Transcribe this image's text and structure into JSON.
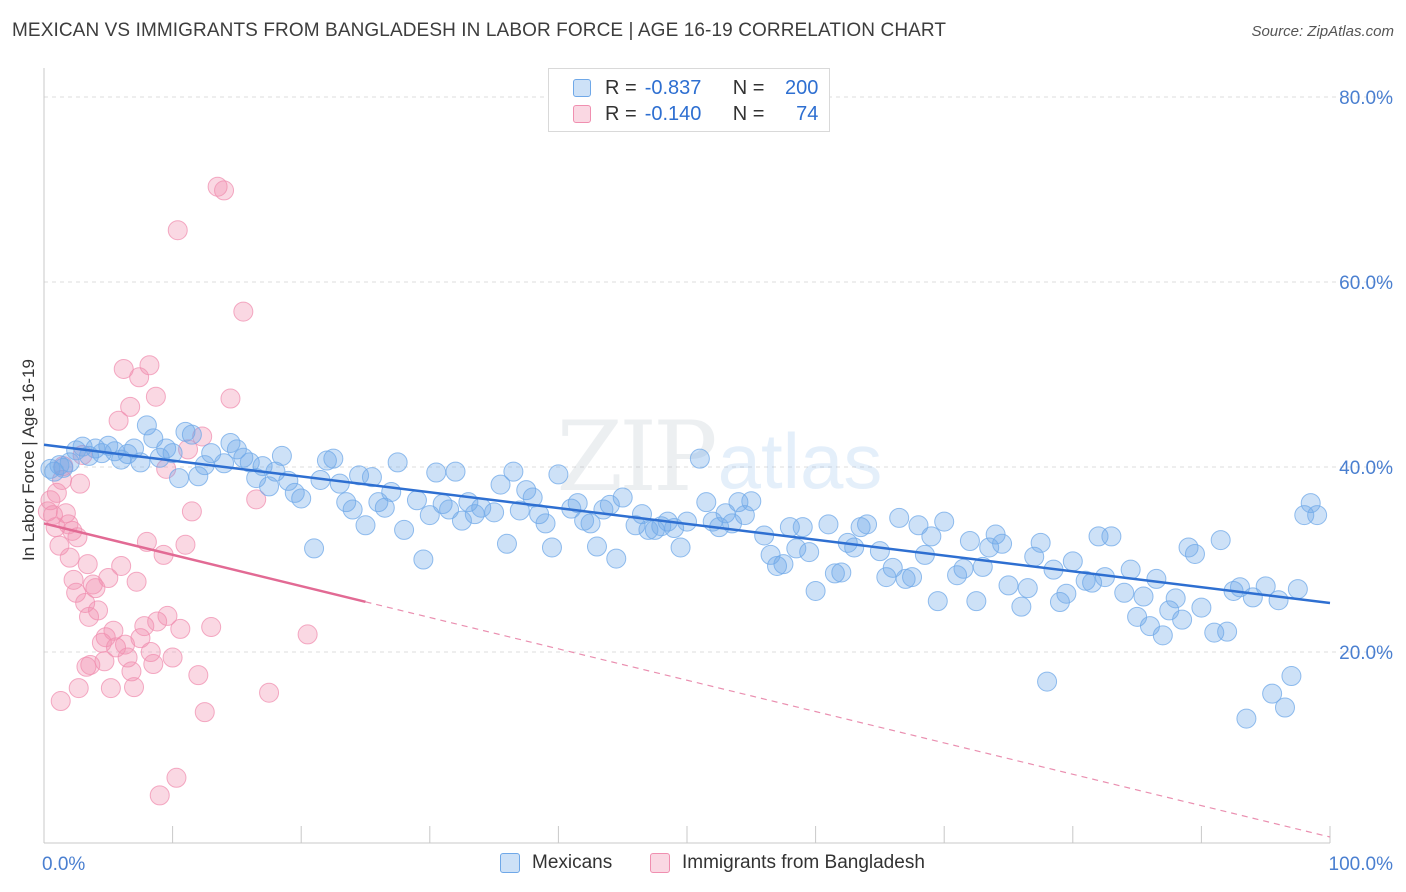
{
  "header": {
    "title": "MEXICAN VS IMMIGRANTS FROM BANGLADESH IN LABOR FORCE | AGE 16-19 CORRELATION CHART",
    "source": "Source: ZipAtlas.com"
  },
  "watermark": {
    "zip": "ZIP",
    "atlas": "atlas"
  },
  "legend": {
    "r_label": "R =",
    "n_label": "N =",
    "rows": [
      {
        "r": "-0.837",
        "n": "200",
        "color": "#6fa8e8"
      },
      {
        "r": "-0.140",
        "n": "74",
        "color": "#f08fb0"
      }
    ]
  },
  "bottom_legend": [
    {
      "label": "Mexicans",
      "color": "#6fa8e8"
    },
    {
      "label": "Immigrants from Bangladesh",
      "color": "#f08fb0"
    }
  ],
  "chart_data": {
    "type": "scatter",
    "title": "MEXICAN VS IMMIGRANTS FROM BANGLADESH IN LABOR FORCE | AGE 16-19 CORRELATION CHART",
    "xlabel": "",
    "ylabel": "In Labor Force | Age 16-19",
    "xlim": [
      0,
      100
    ],
    "ylim": [
      0,
      85
    ],
    "x_tick_labels": [
      "0.0%",
      "100.0%"
    ],
    "y_ticks": [
      20,
      40,
      60,
      80
    ],
    "y_tick_labels": [
      "20.0%",
      "40.0%",
      "60.0%",
      "80.0%"
    ],
    "grid": true,
    "legend_position": "top-center",
    "series": [
      {
        "name": "Mexicans",
        "color": "#6fa8e8",
        "trend": {
          "x": [
            0,
            100
          ],
          "y": [
            42.4,
            25.3
          ],
          "dashed_after": null
        },
        "points": [
          [
            0.5,
            39.8
          ],
          [
            0.8,
            39.5
          ],
          [
            1.2,
            40.2
          ],
          [
            1.5,
            39.9
          ],
          [
            2.0,
            40.5
          ],
          [
            2.5,
            41.8
          ],
          [
            3.0,
            42.2
          ],
          [
            3.5,
            41.2
          ],
          [
            4.0,
            42.0
          ],
          [
            4.5,
            41.5
          ],
          [
            5.0,
            42.3
          ],
          [
            5.5,
            41.7
          ],
          [
            6.0,
            40.8
          ],
          [
            6.5,
            41.4
          ],
          [
            7.0,
            42.0
          ],
          [
            7.5,
            40.5
          ],
          [
            8.0,
            44.5
          ],
          [
            8.5,
            43.1
          ],
          [
            9.0,
            41.0
          ],
          [
            9.5,
            42.0
          ],
          [
            10.0,
            41.5
          ],
          [
            10.5,
            38.8
          ],
          [
            11.0,
            43.8
          ],
          [
            11.5,
            43.5
          ],
          [
            12.0,
            39.0
          ],
          [
            12.5,
            40.2
          ],
          [
            13.0,
            41.5
          ],
          [
            14.0,
            40.4
          ],
          [
            14.5,
            42.6
          ],
          [
            15.0,
            41.9
          ],
          [
            15.5,
            41.0
          ],
          [
            16.0,
            40.5
          ],
          [
            16.5,
            38.8
          ],
          [
            17.0,
            40.1
          ],
          [
            17.5,
            37.9
          ],
          [
            18.0,
            39.5
          ],
          [
            18.5,
            41.2
          ],
          [
            19.0,
            38.5
          ],
          [
            19.5,
            37.2
          ],
          [
            20.0,
            36.6
          ],
          [
            21.0,
            31.2
          ],
          [
            21.5,
            38.6
          ],
          [
            22.0,
            40.7
          ],
          [
            22.5,
            40.9
          ],
          [
            23.0,
            38.2
          ],
          [
            23.5,
            36.2
          ],
          [
            24.0,
            35.4
          ],
          [
            24.5,
            39.1
          ],
          [
            25.0,
            33.7
          ],
          [
            25.5,
            38.9
          ],
          [
            26.0,
            36.2
          ],
          [
            26.5,
            35.6
          ],
          [
            27.0,
            37.3
          ],
          [
            27.5,
            40.5
          ],
          [
            28.0,
            33.2
          ],
          [
            29.0,
            36.4
          ],
          [
            29.5,
            30.0
          ],
          [
            30.0,
            34.8
          ],
          [
            30.5,
            39.4
          ],
          [
            31.0,
            36.0
          ],
          [
            31.5,
            35.4
          ],
          [
            32.0,
            39.5
          ],
          [
            32.5,
            34.2
          ],
          [
            33.0,
            36.2
          ],
          [
            33.5,
            34.9
          ],
          [
            34.0,
            35.6
          ],
          [
            35.0,
            35.1
          ],
          [
            35.5,
            38.1
          ],
          [
            36.0,
            31.7
          ],
          [
            36.5,
            39.5
          ],
          [
            37.0,
            35.3
          ],
          [
            37.5,
            37.5
          ],
          [
            38.0,
            36.7
          ],
          [
            38.5,
            34.9
          ],
          [
            39.0,
            33.9
          ],
          [
            39.5,
            31.3
          ],
          [
            40.0,
            39.2
          ],
          [
            41.0,
            35.5
          ],
          [
            41.5,
            36.1
          ],
          [
            42.0,
            34.2
          ],
          [
            42.5,
            33.9
          ],
          [
            43.0,
            31.4
          ],
          [
            43.5,
            35.4
          ],
          [
            44.0,
            35.9
          ],
          [
            44.5,
            30.1
          ],
          [
            45.0,
            36.7
          ],
          [
            46.0,
            33.7
          ],
          [
            46.5,
            34.9
          ],
          [
            47.0,
            33.2
          ],
          [
            47.5,
            33.2
          ],
          [
            48.0,
            33.6
          ],
          [
            48.5,
            34.1
          ],
          [
            49.0,
            33.4
          ],
          [
            49.5,
            31.3
          ],
          [
            50.0,
            34.1
          ],
          [
            51.0,
            40.9
          ],
          [
            51.5,
            36.2
          ],
          [
            52.0,
            34.1
          ],
          [
            52.5,
            33.5
          ],
          [
            53.0,
            35.0
          ],
          [
            53.5,
            33.9
          ],
          [
            54.0,
            36.2
          ],
          [
            54.5,
            34.8
          ],
          [
            55.0,
            36.3
          ],
          [
            56.0,
            32.6
          ],
          [
            56.5,
            30.5
          ],
          [
            57.0,
            29.3
          ],
          [
            57.5,
            29.5
          ],
          [
            58.0,
            33.5
          ],
          [
            58.5,
            31.2
          ],
          [
            59.0,
            33.5
          ],
          [
            59.5,
            30.8
          ],
          [
            60.0,
            26.6
          ],
          [
            61.0,
            33.8
          ],
          [
            61.5,
            28.5
          ],
          [
            62.0,
            28.6
          ],
          [
            62.5,
            31.8
          ],
          [
            63.0,
            31.3
          ],
          [
            63.5,
            33.5
          ],
          [
            64.0,
            33.8
          ],
          [
            65.0,
            30.9
          ],
          [
            65.5,
            28.1
          ],
          [
            66.0,
            29.1
          ],
          [
            66.5,
            34.5
          ],
          [
            67.0,
            27.9
          ],
          [
            67.5,
            28.1
          ],
          [
            68.0,
            33.7
          ],
          [
            68.5,
            30.5
          ],
          [
            69.0,
            32.5
          ],
          [
            69.5,
            25.5
          ],
          [
            70.0,
            34.1
          ],
          [
            71.0,
            28.3
          ],
          [
            71.5,
            29.0
          ],
          [
            72.0,
            32.0
          ],
          [
            72.5,
            25.5
          ],
          [
            73.0,
            29.2
          ],
          [
            73.5,
            31.3
          ],
          [
            74.0,
            32.7
          ],
          [
            74.5,
            31.7
          ],
          [
            75.0,
            27.2
          ],
          [
            76.0,
            24.9
          ],
          [
            76.5,
            26.9
          ],
          [
            77.0,
            30.3
          ],
          [
            77.5,
            31.8
          ],
          [
            78.0,
            16.8
          ],
          [
            78.5,
            28.9
          ],
          [
            79.0,
            25.4
          ],
          [
            79.5,
            26.3
          ],
          [
            80.0,
            29.8
          ],
          [
            81.0,
            27.7
          ],
          [
            81.5,
            27.5
          ],
          [
            82.0,
            32.5
          ],
          [
            82.5,
            28.1
          ],
          [
            83.0,
            32.5
          ],
          [
            84.0,
            26.4
          ],
          [
            84.5,
            28.9
          ],
          [
            85.0,
            23.8
          ],
          [
            85.5,
            26.0
          ],
          [
            86.0,
            22.8
          ],
          [
            86.5,
            27.9
          ],
          [
            87.0,
            21.8
          ],
          [
            87.5,
            24.5
          ],
          [
            88.0,
            25.8
          ],
          [
            88.5,
            23.5
          ],
          [
            89.0,
            31.3
          ],
          [
            89.5,
            30.6
          ],
          [
            90.0,
            24.8
          ],
          [
            91.0,
            22.1
          ],
          [
            91.5,
            32.1
          ],
          [
            92.0,
            22.2
          ],
          [
            92.5,
            26.6
          ],
          [
            93.0,
            27.0
          ],
          [
            93.5,
            12.8
          ],
          [
            94.0,
            25.9
          ],
          [
            95.0,
            27.1
          ],
          [
            95.5,
            15.5
          ],
          [
            96.0,
            25.6
          ],
          [
            96.5,
            14.0
          ],
          [
            97.0,
            17.4
          ],
          [
            97.5,
            26.8
          ],
          [
            98.0,
            34.8
          ],
          [
            98.5,
            36.1
          ],
          [
            99.0,
            34.8
          ]
        ]
      },
      {
        "name": "Immigrants from Bangladesh",
        "color": "#f08fb0",
        "trend": {
          "x": [
            0,
            100
          ],
          "y": [
            33.9,
            0
          ],
          "solid_until_x": 25
        },
        "points": [
          [
            0.3,
            35.2
          ],
          [
            0.5,
            36.4
          ],
          [
            0.7,
            34.8
          ],
          [
            0.9,
            33.5
          ],
          [
            1.0,
            37.2
          ],
          [
            1.2,
            31.5
          ],
          [
            1.4,
            38.6
          ],
          [
            1.5,
            40.1
          ],
          [
            1.7,
            35.0
          ],
          [
            1.9,
            33.8
          ],
          [
            2.0,
            30.2
          ],
          [
            2.2,
            33.1
          ],
          [
            2.3,
            27.8
          ],
          [
            2.5,
            26.4
          ],
          [
            2.6,
            32.4
          ],
          [
            2.8,
            38.2
          ],
          [
            3.0,
            41.3
          ],
          [
            3.2,
            25.3
          ],
          [
            3.4,
            29.5
          ],
          [
            3.5,
            23.8
          ],
          [
            3.6,
            18.6
          ],
          [
            3.8,
            27.3
          ],
          [
            4.0,
            26.9
          ],
          [
            4.2,
            24.5
          ],
          [
            4.5,
            21.0
          ],
          [
            4.7,
            19.0
          ],
          [
            5.0,
            28.0
          ],
          [
            5.2,
            16.1
          ],
          [
            5.4,
            22.3
          ],
          [
            5.6,
            20.5
          ],
          [
            5.8,
            45.0
          ],
          [
            6.0,
            29.3
          ],
          [
            6.3,
            20.8
          ],
          [
            6.5,
            19.4
          ],
          [
            6.8,
            17.9
          ],
          [
            7.0,
            16.2
          ],
          [
            7.2,
            27.6
          ],
          [
            7.5,
            21.5
          ],
          [
            7.8,
            22.8
          ],
          [
            8.0,
            31.9
          ],
          [
            8.3,
            20.0
          ],
          [
            8.5,
            18.7
          ],
          [
            8.8,
            23.3
          ],
          [
            9.0,
            4.5
          ],
          [
            9.3,
            30.5
          ],
          [
            9.6,
            23.9
          ],
          [
            10.0,
            19.4
          ],
          [
            10.3,
            6.4
          ],
          [
            10.6,
            22.5
          ],
          [
            11.0,
            31.6
          ],
          [
            11.5,
            35.2
          ],
          [
            12.0,
            17.5
          ],
          [
            12.5,
            13.5
          ],
          [
            13.0,
            22.7
          ],
          [
            13.5,
            70.3
          ],
          [
            14.0,
            69.9
          ],
          [
            14.5,
            47.4
          ],
          [
            1.3,
            14.7
          ],
          [
            2.7,
            16.1
          ],
          [
            3.3,
            18.4
          ],
          [
            4.8,
            21.6
          ],
          [
            6.2,
            50.6
          ],
          [
            6.7,
            46.5
          ],
          [
            7.4,
            49.7
          ],
          [
            8.2,
            51.0
          ],
          [
            8.7,
            47.6
          ],
          [
            9.5,
            39.8
          ],
          [
            10.4,
            65.6
          ],
          [
            11.2,
            41.9
          ],
          [
            12.3,
            43.3
          ],
          [
            15.5,
            56.8
          ],
          [
            16.5,
            36.5
          ],
          [
            17.5,
            15.6
          ],
          [
            20.5,
            21.9
          ]
        ]
      }
    ]
  }
}
